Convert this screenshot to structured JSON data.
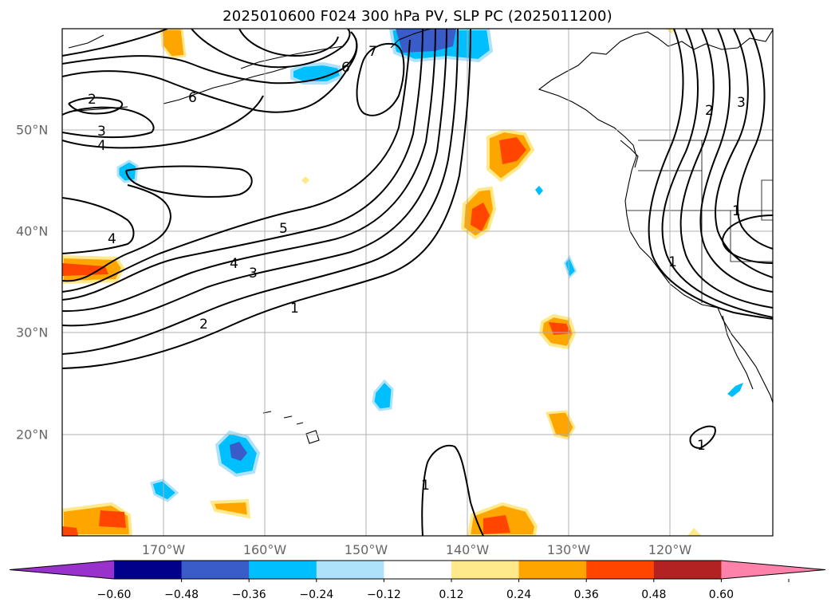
{
  "title": "2025010600 F024 300 hPa PV, SLP PC (2025011200)",
  "map": {
    "lon_labels": [
      "170°W",
      "160°W",
      "150°W",
      "140°W",
      "130°W",
      "120°W"
    ],
    "lat_labels": [
      "50°N",
      "40°N",
      "30°N",
      "20°N"
    ],
    "contour_labels": [
      "2",
      "3",
      "4",
      "4",
      "4",
      "3",
      "5",
      "2",
      "1",
      "1",
      "1",
      "1",
      "2",
      "3",
      "1",
      "6",
      "7",
      "6"
    ]
  },
  "colorbar": {
    "ticks": [
      "−0.60",
      "−0.48",
      "−0.36",
      "−0.24",
      "−0.12",
      "0.12",
      "0.24",
      "0.36",
      "0.48",
      "0.60"
    ],
    "colors": [
      "#9932CC",
      "#00008B",
      "#3A5CC8",
      "#00BFFF",
      "#ADE2FA",
      "#FFFFFF",
      "#FFE98A",
      "#FFA500",
      "#FF4500",
      "#B22222",
      "#FF82AB"
    ]
  }
}
